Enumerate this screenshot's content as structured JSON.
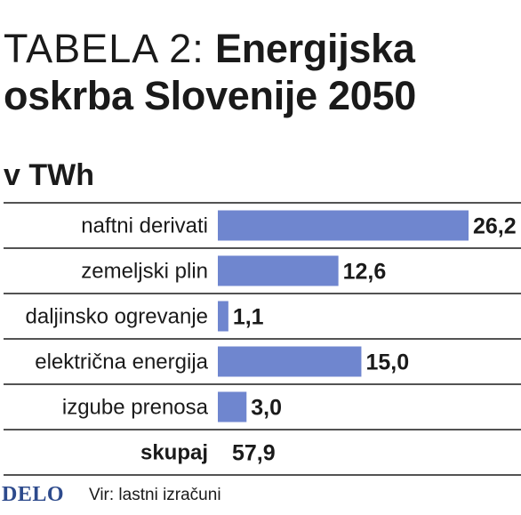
{
  "header": {
    "title_prefix": "TABELA 2:",
    "title_main": "Energijska oskrba Slovenije 2050",
    "unit": "v TWh"
  },
  "chart_data": {
    "type": "bar",
    "orientation": "horizontal",
    "categories": [
      "naftni derivati",
      "zemeljski plin",
      "daljinsko ogrevanje",
      "električna energija",
      "izgube prenosa"
    ],
    "values": [
      26.2,
      12.6,
      1.1,
      15.0,
      3.0
    ],
    "value_labels": [
      "26,2",
      "12,6",
      "1,1",
      "15,0",
      "3,0"
    ],
    "total_label": "skupaj",
    "total_value": "57,9",
    "bar_color": "#6f86cf",
    "xlim": [
      0,
      26.2
    ],
    "grid": false
  },
  "footer": {
    "logo": "DELO",
    "source": "Vir: lastni izračuni"
  }
}
